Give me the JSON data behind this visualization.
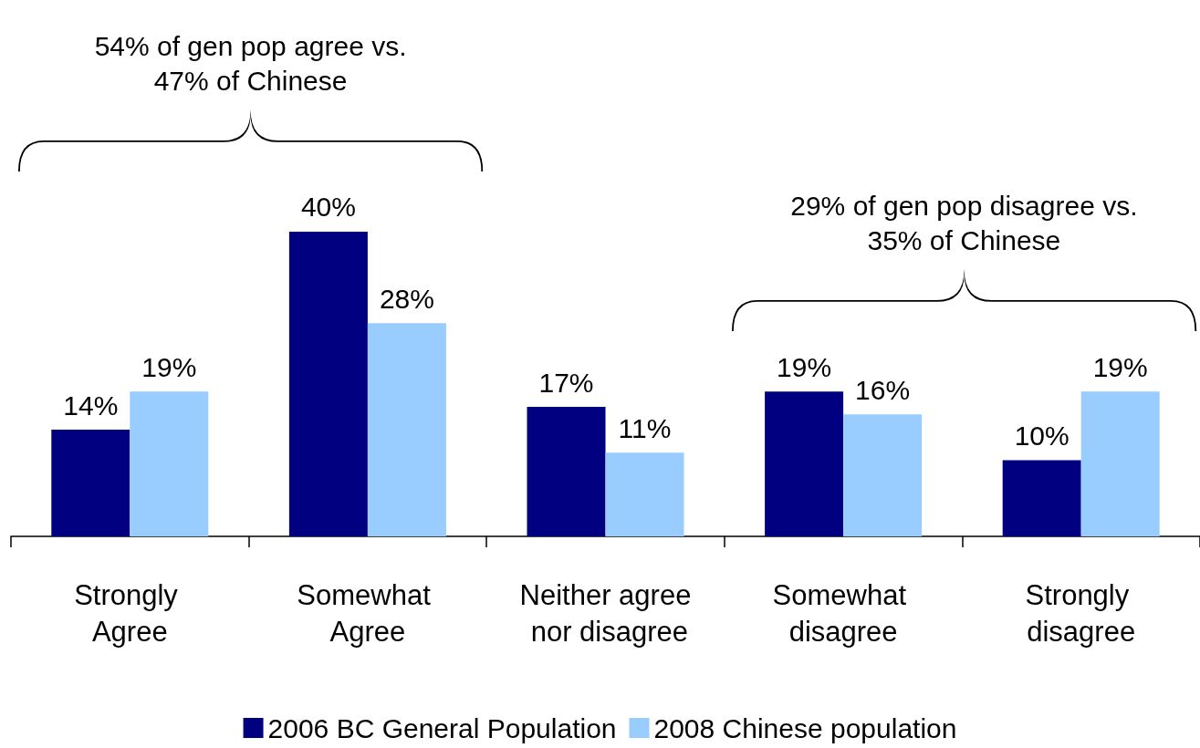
{
  "chart_data": {
    "type": "bar",
    "categories": [
      "Strongly Agree",
      "Somewhat Agree",
      "Neither agree nor disagree",
      "Somewhat disagree",
      "Strongly disagree"
    ],
    "series": [
      {
        "name": "2006 BC General Population",
        "color": "#000080",
        "values": [
          14,
          40,
          17,
          19,
          10
        ],
        "value_labels": [
          "14%",
          "40%",
          "17%",
          "19%",
          "10%"
        ]
      },
      {
        "name": "2008 Chinese population",
        "color": "#99ccff",
        "values": [
          19,
          28,
          11,
          16,
          19
        ],
        "value_labels": [
          "19%",
          "28%",
          "11%",
          "16%",
          "19%"
        ]
      }
    ],
    "annotations": [
      "54% of gen pop agree vs. 47% of Chinese",
      "29% of gen pop disagree vs. 35% of Chinese"
    ],
    "legend": "bottom",
    "grid": false
  }
}
